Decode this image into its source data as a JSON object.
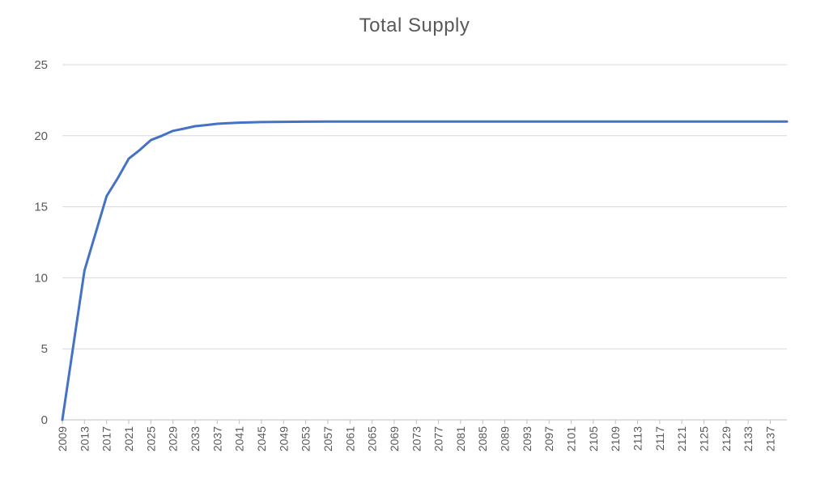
{
  "chart_data": {
    "type": "line",
    "title": "Total Supply",
    "xlabel": "",
    "ylabel": "",
    "ylim": [
      0,
      25
    ],
    "yticks": [
      0,
      5,
      10,
      15,
      20,
      25
    ],
    "xlim": [
      2009,
      2140
    ],
    "xticks": [
      2009,
      2013,
      2017,
      2021,
      2025,
      2029,
      2033,
      2037,
      2041,
      2045,
      2049,
      2053,
      2057,
      2061,
      2065,
      2069,
      2073,
      2077,
      2081,
      2085,
      2089,
      2093,
      2097,
      2101,
      2105,
      2109,
      2113,
      2117,
      2121,
      2125,
      2129,
      2133,
      2137
    ],
    "grid": true,
    "legend": "none",
    "colors": {
      "series": "#4472c4"
    },
    "series": [
      {
        "x": [
          2009,
          2013,
          2017,
          2019,
          2021,
          2023,
          2025,
          2027,
          2029,
          2031,
          2033,
          2035,
          2037,
          2039,
          2041,
          2045,
          2049,
          2053,
          2057,
          2140
        ],
        "values": [
          0,
          10.5,
          15.75,
          17.0,
          18.38,
          19.0,
          19.69,
          20.0,
          20.34,
          20.5,
          20.67,
          20.75,
          20.84,
          20.88,
          20.92,
          20.96,
          20.98,
          20.99,
          21.0,
          21.0
        ]
      }
    ]
  }
}
